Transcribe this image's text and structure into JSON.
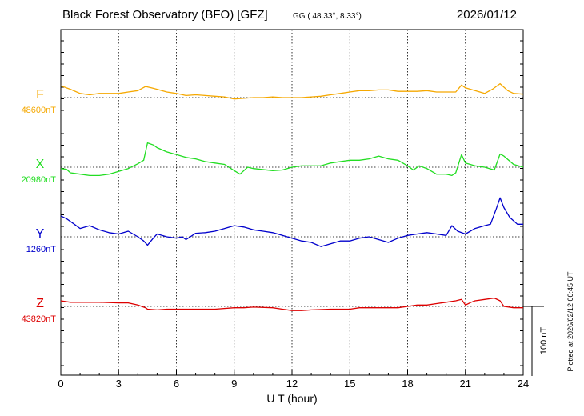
{
  "header": {
    "title": "Black Forest Observatory (BFO)  [GFZ]",
    "coords": "GG ( 48.33°,   8.33°)",
    "date": "2026/01/12"
  },
  "footer": {
    "plotted_note": "Plotted at 2026/02/12 00:45 UT"
  },
  "chart_data": {
    "type": "line",
    "title": "Black Forest Observatory (BFO)  [GFZ]",
    "xlabel": "U T (hour)",
    "xlim": [
      0,
      24
    ],
    "xticks": [
      0,
      3,
      6,
      9,
      12,
      15,
      18,
      21,
      24
    ],
    "scale_bar": {
      "label": "100 nT",
      "value_nT": 100
    },
    "grid": "vertical dotted every 3 h; dotted baseline per component",
    "series": [
      {
        "name": "F",
        "baseline_label": "48600nT",
        "baseline_nT": 48600,
        "color": "#f5a800",
        "points": [
          [
            0,
            48617
          ],
          [
            0.5,
            48612
          ],
          [
            1,
            48606
          ],
          [
            1.5,
            48604
          ],
          [
            2,
            48606
          ],
          [
            3,
            48606
          ],
          [
            3.5,
            48608
          ],
          [
            4,
            48610
          ],
          [
            4.4,
            48616
          ],
          [
            4.7,
            48614
          ],
          [
            5,
            48612
          ],
          [
            5.5,
            48608
          ],
          [
            6,
            48606
          ],
          [
            6.5,
            48603
          ],
          [
            7,
            48604
          ],
          [
            7.5,
            48603
          ],
          [
            8,
            48602
          ],
          [
            8.5,
            48601
          ],
          [
            9,
            48598
          ],
          [
            9.5,
            48599
          ],
          [
            10,
            48600
          ],
          [
            10.5,
            48600
          ],
          [
            11,
            48601
          ],
          [
            11.5,
            48600
          ],
          [
            12,
            48600
          ],
          [
            12.5,
            48600
          ],
          [
            13,
            48601
          ],
          [
            13.5,
            48602
          ],
          [
            14,
            48604
          ],
          [
            14.5,
            48606
          ],
          [
            15,
            48608
          ],
          [
            15.5,
            48610
          ],
          [
            16,
            48610
          ],
          [
            16.5,
            48611
          ],
          [
            17,
            48611
          ],
          [
            17.5,
            48609
          ],
          [
            18,
            48609
          ],
          [
            18.5,
            48609
          ],
          [
            19,
            48610
          ],
          [
            19.5,
            48608
          ],
          [
            20,
            48608
          ],
          [
            20.5,
            48608
          ],
          [
            20.8,
            48618
          ],
          [
            21,
            48614
          ],
          [
            21.5,
            48610
          ],
          [
            22,
            48606
          ],
          [
            22.4,
            48612
          ],
          [
            22.8,
            48620
          ],
          [
            23.2,
            48610
          ],
          [
            23.5,
            48606
          ],
          [
            24,
            48605
          ]
        ]
      },
      {
        "name": "X",
        "baseline_label": "20980nT",
        "baseline_nT": 20980,
        "color": "#22dd22",
        "points": [
          [
            0,
            20978
          ],
          [
            0.3,
            20977
          ],
          [
            0.5,
            20972
          ],
          [
            1,
            20970
          ],
          [
            1.5,
            20968
          ],
          [
            2,
            20968
          ],
          [
            2.5,
            20970
          ],
          [
            3,
            20974
          ],
          [
            3.5,
            20978
          ],
          [
            4,
            20985
          ],
          [
            4.3,
            20990
          ],
          [
            4.5,
            21015
          ],
          [
            4.8,
            21012
          ],
          [
            5,
            21008
          ],
          [
            5.5,
            21002
          ],
          [
            6,
            20998
          ],
          [
            6.5,
            20994
          ],
          [
            7,
            20992
          ],
          [
            7.5,
            20988
          ],
          [
            8,
            20986
          ],
          [
            8.5,
            20984
          ],
          [
            9,
            20975
          ],
          [
            9.3,
            20970
          ],
          [
            9.7,
            20980
          ],
          [
            10,
            20978
          ],
          [
            11,
            20975
          ],
          [
            11.5,
            20976
          ],
          [
            12,
            20980
          ],
          [
            12.5,
            20982
          ],
          [
            13,
            20982
          ],
          [
            13.5,
            20982
          ],
          [
            14,
            20986
          ],
          [
            14.5,
            20988
          ],
          [
            15,
            20990
          ],
          [
            15.5,
            20990
          ],
          [
            16,
            20992
          ],
          [
            16.5,
            20996
          ],
          [
            17,
            20992
          ],
          [
            17.5,
            20990
          ],
          [
            18,
            20982
          ],
          [
            18.3,
            20976
          ],
          [
            18.6,
            20982
          ],
          [
            19,
            20978
          ],
          [
            19.5,
            20970
          ],
          [
            20,
            20970
          ],
          [
            20.3,
            20968
          ],
          [
            20.5,
            20972
          ],
          [
            20.8,
            20998
          ],
          [
            21,
            20986
          ],
          [
            21.5,
            20982
          ],
          [
            22,
            20980
          ],
          [
            22.5,
            20976
          ],
          [
            22.8,
            20999
          ],
          [
            23,
            20996
          ],
          [
            23.5,
            20984
          ],
          [
            24,
            20980
          ]
        ]
      },
      {
        "name": "Y",
        "baseline_label": "1260nT",
        "baseline_nT": 1260,
        "color": "#0000cc",
        "points": [
          [
            0,
            1290
          ],
          [
            0.3,
            1286
          ],
          [
            0.7,
            1278
          ],
          [
            1,
            1272
          ],
          [
            1.5,
            1276
          ],
          [
            2,
            1270
          ],
          [
            2.5,
            1266
          ],
          [
            3,
            1264
          ],
          [
            3.5,
            1268
          ],
          [
            4,
            1260
          ],
          [
            4.3,
            1254
          ],
          [
            4.5,
            1248
          ],
          [
            4.8,
            1258
          ],
          [
            5,
            1264
          ],
          [
            5.5,
            1260
          ],
          [
            6,
            1258
          ],
          [
            6.3,
            1260
          ],
          [
            6.5,
            1256
          ],
          [
            7,
            1265
          ],
          [
            7.5,
            1266
          ],
          [
            8,
            1268
          ],
          [
            8.5,
            1272
          ],
          [
            9,
            1276
          ],
          [
            9.5,
            1274
          ],
          [
            10,
            1270
          ],
          [
            10.5,
            1268
          ],
          [
            11,
            1266
          ],
          [
            11.5,
            1262
          ],
          [
            12,
            1258
          ],
          [
            12.5,
            1254
          ],
          [
            13,
            1252
          ],
          [
            13.5,
            1246
          ],
          [
            14,
            1250
          ],
          [
            14.5,
            1254
          ],
          [
            15,
            1254
          ],
          [
            15.5,
            1258
          ],
          [
            16,
            1260
          ],
          [
            16.5,
            1256
          ],
          [
            17,
            1252
          ],
          [
            17.5,
            1258
          ],
          [
            18,
            1262
          ],
          [
            18.5,
            1264
          ],
          [
            19,
            1266
          ],
          [
            19.5,
            1264
          ],
          [
            20,
            1262
          ],
          [
            20.3,
            1276
          ],
          [
            20.6,
            1268
          ],
          [
            21,
            1264
          ],
          [
            21.5,
            1272
          ],
          [
            22,
            1276
          ],
          [
            22.3,
            1278
          ],
          [
            22.6,
            1300
          ],
          [
            22.8,
            1316
          ],
          [
            23,
            1302
          ],
          [
            23.3,
            1288
          ],
          [
            23.7,
            1278
          ],
          [
            24,
            1278
          ]
        ]
      },
      {
        "name": "Z",
        "baseline_label": "43820nT",
        "baseline_nT": 43820,
        "color": "#dd0000",
        "points": [
          [
            0,
            43828
          ],
          [
            0.5,
            43826
          ],
          [
            1,
            43826
          ],
          [
            2,
            43826
          ],
          [
            3,
            43825
          ],
          [
            3.5,
            43825
          ],
          [
            4,
            43822
          ],
          [
            4.4,
            43818
          ],
          [
            4.5,
            43816
          ],
          [
            5,
            43815
          ],
          [
            5.5,
            43816
          ],
          [
            6,
            43816
          ],
          [
            7,
            43816
          ],
          [
            8,
            43816
          ],
          [
            9,
            43818
          ],
          [
            9.5,
            43818
          ],
          [
            10,
            43819
          ],
          [
            11,
            43818
          ],
          [
            11.5,
            43816
          ],
          [
            12,
            43814
          ],
          [
            12.5,
            43814
          ],
          [
            13,
            43815
          ],
          [
            14,
            43816
          ],
          [
            15,
            43816
          ],
          [
            15.5,
            43818
          ],
          [
            16,
            43818
          ],
          [
            17,
            43818
          ],
          [
            17.5,
            43818
          ],
          [
            18,
            43820
          ],
          [
            18.5,
            43822
          ],
          [
            19,
            43822
          ],
          [
            19.5,
            43824
          ],
          [
            20,
            43826
          ],
          [
            20.5,
            43828
          ],
          [
            20.8,
            43830
          ],
          [
            21,
            43822
          ],
          [
            21.3,
            43826
          ],
          [
            21.5,
            43828
          ],
          [
            22,
            43830
          ],
          [
            22.5,
            43832
          ],
          [
            22.8,
            43828
          ],
          [
            23,
            43820
          ],
          [
            23.5,
            43818
          ],
          [
            24,
            43818
          ]
        ]
      }
    ]
  }
}
